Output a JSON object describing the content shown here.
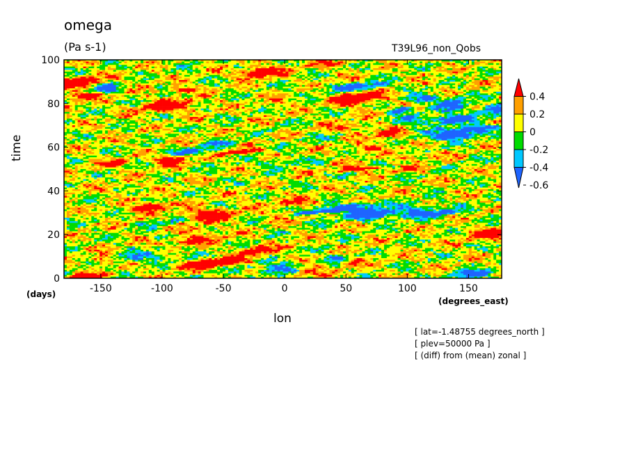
{
  "title": "omega",
  "units": "(Pa s-1)",
  "run_label": "T39L96_non_Qobs",
  "notes": [
    "[ lat=-1.48755 degrees_north ]",
    "[ plev=50000 Pa ]",
    "[ (diff) from (mean) zonal ]"
  ],
  "chart_data": {
    "type": "heatmap",
    "xlabel": "lon",
    "x_units": "(degrees_east)",
    "ylabel": "time",
    "y_units": "(days)",
    "xlim": [
      -180,
      177
    ],
    "ylim": [
      0,
      100
    ],
    "x_ticks": [
      -150,
      -100,
      -50,
      0,
      50,
      100,
      150
    ],
    "x_tick_labels": [
      "-150",
      "-100",
      "-50",
      "0",
      "50",
      "100",
      "150"
    ],
    "y_ticks": [
      0,
      20,
      40,
      60,
      80,
      100
    ],
    "y_tick_labels": [
      "0",
      "20",
      "40",
      "60",
      "80",
      "100"
    ],
    "colorbar": {
      "levels": [
        -0.6,
        -0.4,
        -0.2,
        0,
        0.2,
        0.4
      ],
      "labels": [
        "-0.6",
        "-0.4",
        "-0.2",
        "0",
        "0.2",
        "0.4"
      ],
      "colors": [
        "#1e64ff",
        "#00c8ff",
        "#00dc00",
        "#ffff00",
        "#ffa000",
        "#ff0000"
      ],
      "extend": "both"
    }
  }
}
